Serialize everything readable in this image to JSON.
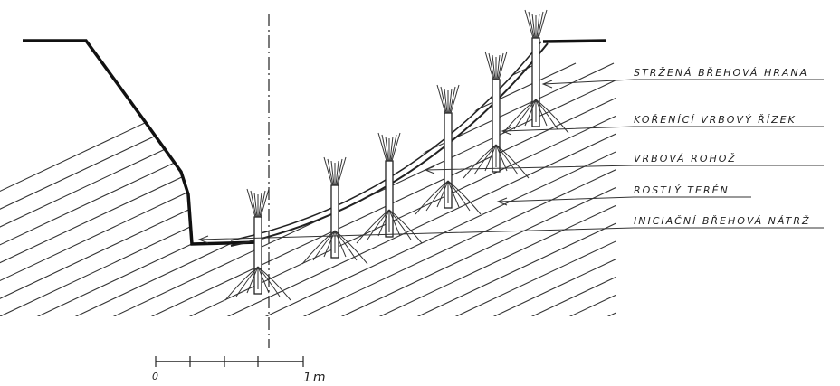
{
  "labels": [
    "STRŽENÁ BŘEHOVÁ HRANA",
    "KOŘENÍCÍ VRBOVÝ ŘÍZEK",
    "VRBOVÁ ROHOŽ",
    "ROSTLÝ TERÉN",
    "INICIAČNÍ BŘEHOVÁ NÁTRŽ"
  ],
  "scale": {
    "start": "0",
    "end": "1m"
  }
}
